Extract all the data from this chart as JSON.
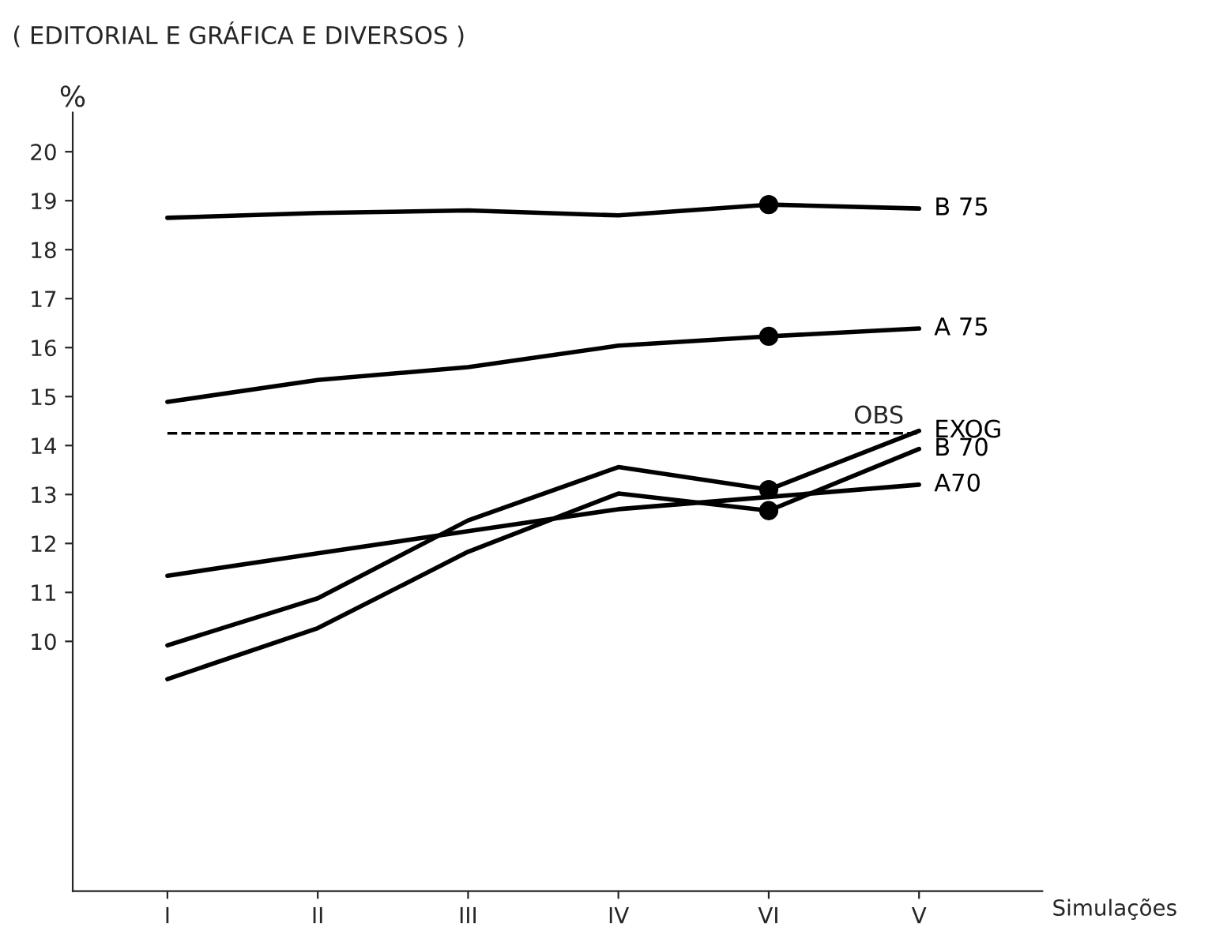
{
  "chart_data": {
    "type": "line",
    "title": "( EDITORIAL E GRÁFICA E DIVERSOS )",
    "ylabel": "%",
    "xlabel": "Simulações",
    "categories": [
      "I",
      "II",
      "III",
      "IV",
      "VI",
      "V"
    ],
    "series": [
      {
        "name": "B 75",
        "color": "#000000",
        "values": [
          18.65,
          18.75,
          18.8,
          18.7,
          18.92,
          18.84
        ]
      },
      {
        "name": "A 75",
        "color": "#000000",
        "values": [
          14.89,
          15.34,
          15.6,
          16.04,
          16.23,
          16.39
        ]
      },
      {
        "name": "EXOG",
        "color": "#000000",
        "values": [
          9.92,
          10.88,
          12.47,
          13.56,
          13.1,
          14.3
        ]
      },
      {
        "name": "B 70",
        "color": "#000000",
        "values": [
          9.23,
          10.27,
          11.83,
          13.02,
          12.67,
          13.93
        ]
      },
      {
        "name": "A70",
        "color": "#000000",
        "values": [
          11.34,
          11.8,
          12.25,
          12.7,
          12.95,
          13.2
        ]
      },
      {
        "type": "scatter",
        "marker": "circle",
        "color": "#000000",
        "x": [
          "VI",
          "VI",
          "VI",
          "VI"
        ],
        "values": [
          18.92,
          16.23,
          13.1,
          12.67
        ]
      }
    ],
    "ref_lines": [
      {
        "axis": "y",
        "value": 14.25,
        "label": "OBS",
        "color": "#000000",
        "line_style": "dashed"
      }
    ],
    "ylim": [
      4.9,
      20.8
    ],
    "yticks": [
      10,
      11,
      12,
      13,
      14,
      15,
      16,
      17,
      18,
      19,
      20
    ],
    "grid": false,
    "legend": false,
    "marker": "none",
    "line_style": "solid"
  }
}
